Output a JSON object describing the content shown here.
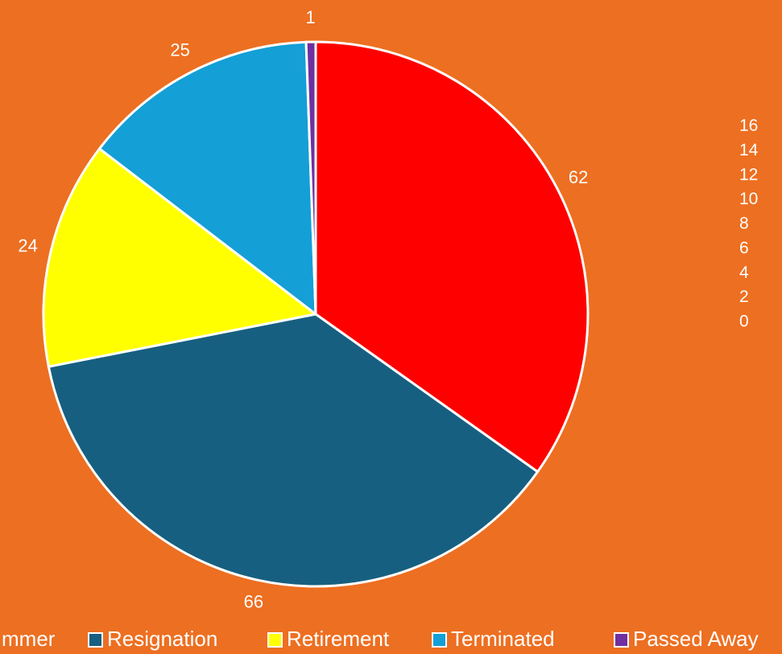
{
  "chart_data": [
    {
      "type": "pie",
      "categories": [
        "mmer",
        "Resignation",
        "Retirement",
        "Terminated",
        "Passed Away"
      ],
      "values": [
        62,
        66,
        24,
        25,
        1
      ],
      "colors": [
        "#ff0000",
        "#175f80",
        "#ffff00",
        "#149fd6",
        "#7030a0"
      ],
      "legend": "bottom"
    },
    {
      "type": "axis",
      "ylim": [
        0,
        16
      ],
      "yticks": [
        0,
        2,
        4,
        6,
        8,
        10,
        12,
        14,
        16
      ]
    }
  ]
}
